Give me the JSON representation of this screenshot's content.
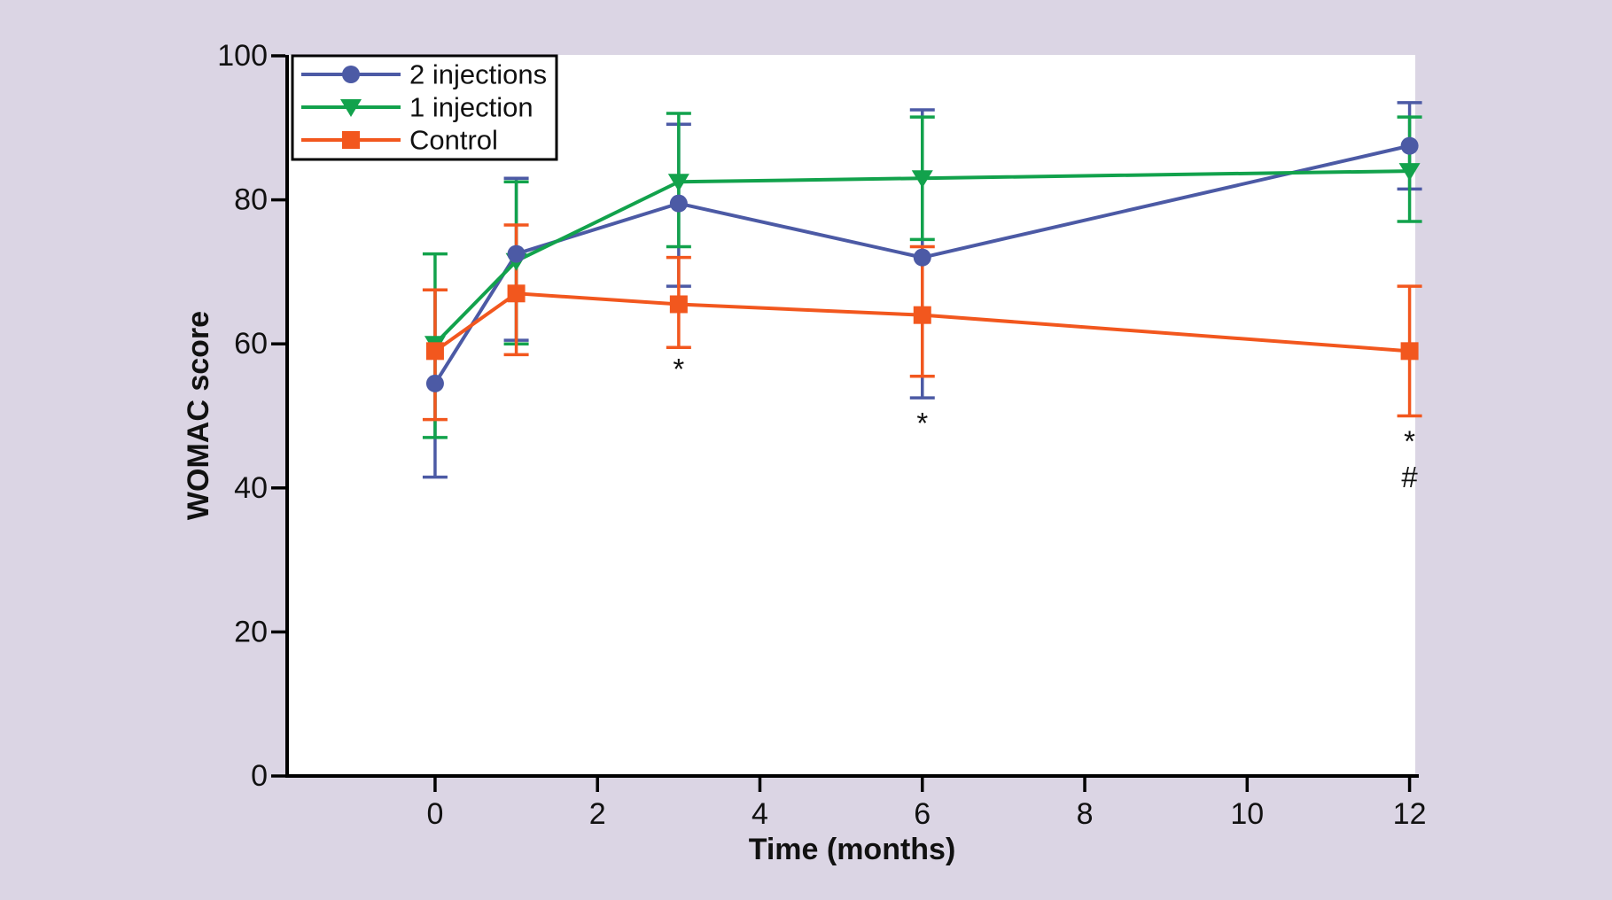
{
  "figure": {
    "background_color": "#DBD5E4",
    "plot_background": "#FFFFFF",
    "axis_color": "#000000",
    "text_color": "#111111"
  },
  "chart_data": {
    "type": "line",
    "title": "",
    "xlabel": "Time (months)",
    "ylabel": "WOMAC score",
    "xlim": [
      -1.8,
      12.07
    ],
    "ylim": [
      0,
      100
    ],
    "x_ticks": [
      0,
      2,
      4,
      6,
      8,
      10,
      12
    ],
    "y_ticks": [
      0,
      20,
      40,
      60,
      80,
      100
    ],
    "grid": false,
    "legend_position": "top-left",
    "x": [
      0,
      1,
      3,
      6,
      12
    ],
    "series": [
      {
        "name": "2 injections",
        "color": "#4C5AA5",
        "marker": "circle",
        "values": [
          54.5,
          72.5,
          79.5,
          72,
          87.5
        ],
        "err_up": [
          13,
          10.5,
          11,
          20.5,
          6
        ],
        "err_down": [
          13,
          12,
          11.5,
          19.5,
          6
        ]
      },
      {
        "name": "1 injection",
        "color": "#12A24C",
        "marker": "triangle-down",
        "values": [
          60,
          71.5,
          82.5,
          83,
          84
        ],
        "err_up": [
          12.5,
          11,
          9.5,
          8.5,
          7.5
        ],
        "err_down": [
          13,
          11.5,
          9,
          8.5,
          7
        ]
      },
      {
        "name": "Control",
        "color": "#F2571E",
        "marker": "square",
        "values": [
          59,
          67,
          65.5,
          64,
          59
        ],
        "err_up": [
          8.5,
          9.5,
          6.5,
          9.5,
          9
        ],
        "err_down": [
          9.5,
          8.5,
          6,
          8.5,
          9
        ]
      }
    ],
    "annotations": [
      {
        "text": "*",
        "x": 3,
        "y": 56.5
      },
      {
        "text": "*",
        "x": 6,
        "y": 49
      },
      {
        "text": "*",
        "x": 12,
        "y": 46.5
      },
      {
        "text": "#",
        "x": 12,
        "y": 41.5
      }
    ]
  }
}
